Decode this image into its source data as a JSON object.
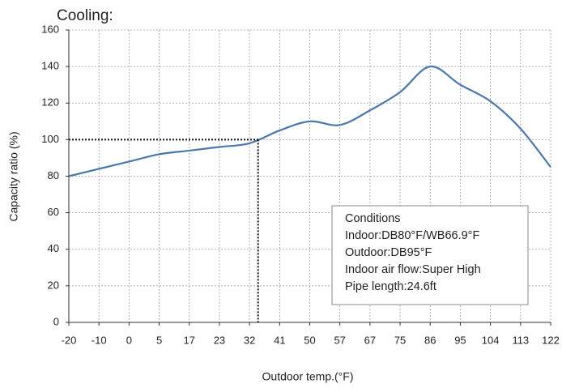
{
  "chart_data": {
    "type": "line",
    "title": "Cooling:",
    "x_label": "Outdoor temp.(°F)",
    "y_label": "Capacity ratio (%)",
    "categories": [
      "-20",
      "-10",
      "0",
      "5",
      "17",
      "23",
      "32",
      "41",
      "50",
      "57",
      "67",
      "75",
      "86",
      "95",
      "104",
      "113",
      "122"
    ],
    "series": [
      {
        "name": "Capacity ratio",
        "color": "#4a78ae",
        "values": [
          80,
          84,
          88,
          92,
          94,
          96,
          98,
          105,
          110,
          108,
          116,
          126,
          140,
          130,
          121,
          106,
          85
        ]
      }
    ],
    "ylim": [
      0,
      160
    ],
    "yticks": [
      0,
      20,
      40,
      60,
      80,
      100,
      120,
      140,
      160
    ],
    "grid": true,
    "reference_y": 100,
    "annotation": [
      "Conditions",
      "Indoor:DB80°F/WB66.9°F",
      "Outdoor:DB95°F",
      "Indoor air flow:Super High",
      "Pipe length:24.6ft"
    ]
  }
}
